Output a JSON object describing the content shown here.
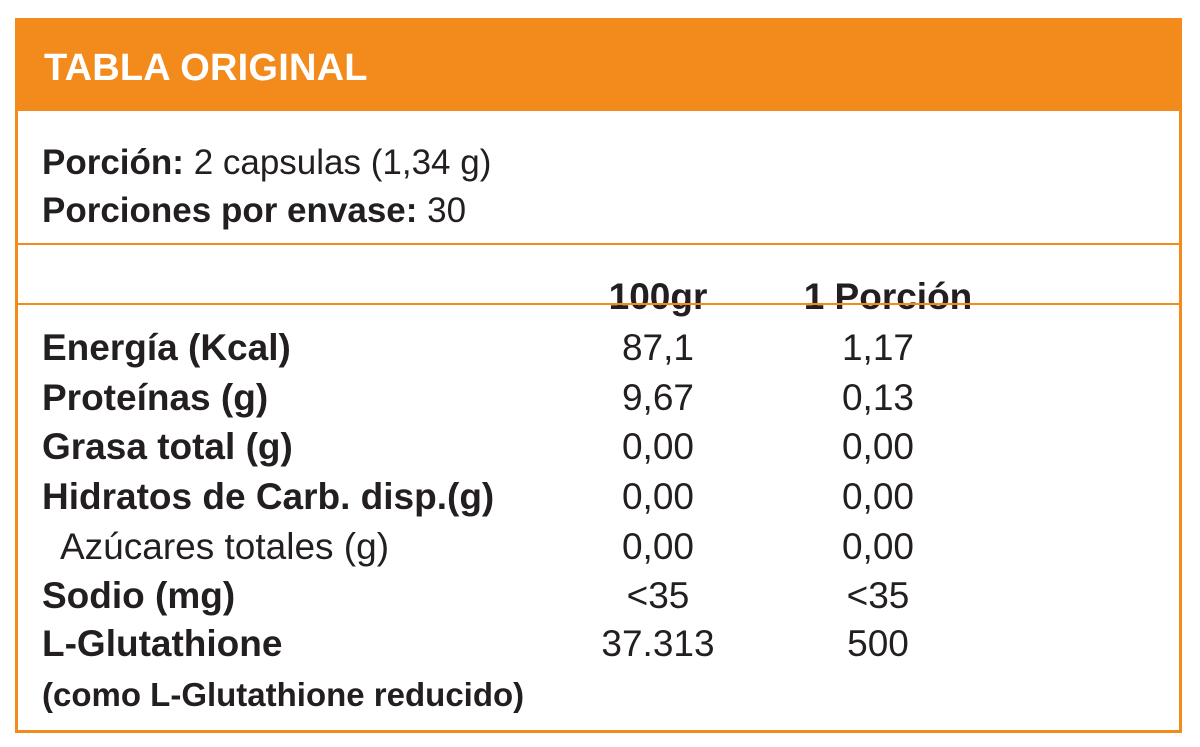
{
  "header": {
    "title": "TABLA ORIGINAL"
  },
  "serving": {
    "size_label": "Porción:",
    "size_value": "2 capsulas (1,34 g)",
    "count_label": "Porciones por envase:",
    "count_value": "30"
  },
  "columns": {
    "per100": "100gr",
    "per_portion": "1 Porción"
  },
  "rows": [
    {
      "label": "Energía (Kcal)",
      "per100": "87,1",
      "per_portion": "1,17"
    },
    {
      "label": "Proteínas (g)",
      "per100": "9,67",
      "per_portion": "0,13"
    },
    {
      "label": "Grasa total (g)",
      "per100": "0,00",
      "per_portion": "0,00"
    },
    {
      "label": "Hidratos de Carb. disp.(g)",
      "per100": "0,00",
      "per_portion": "0,00"
    },
    {
      "label": "Azúcares totales (g)",
      "per100": "0,00",
      "per_portion": "0,00"
    },
    {
      "label": "Sodio (mg)",
      "per100": "<35",
      "per_portion": "<35"
    },
    {
      "label": "L-Glutathione",
      "per100": "37.313",
      "per_portion": "500"
    }
  ],
  "note": "(como L-Glutathione reducido)",
  "colors": {
    "accent": "#f28a1c",
    "text": "#231f20"
  }
}
